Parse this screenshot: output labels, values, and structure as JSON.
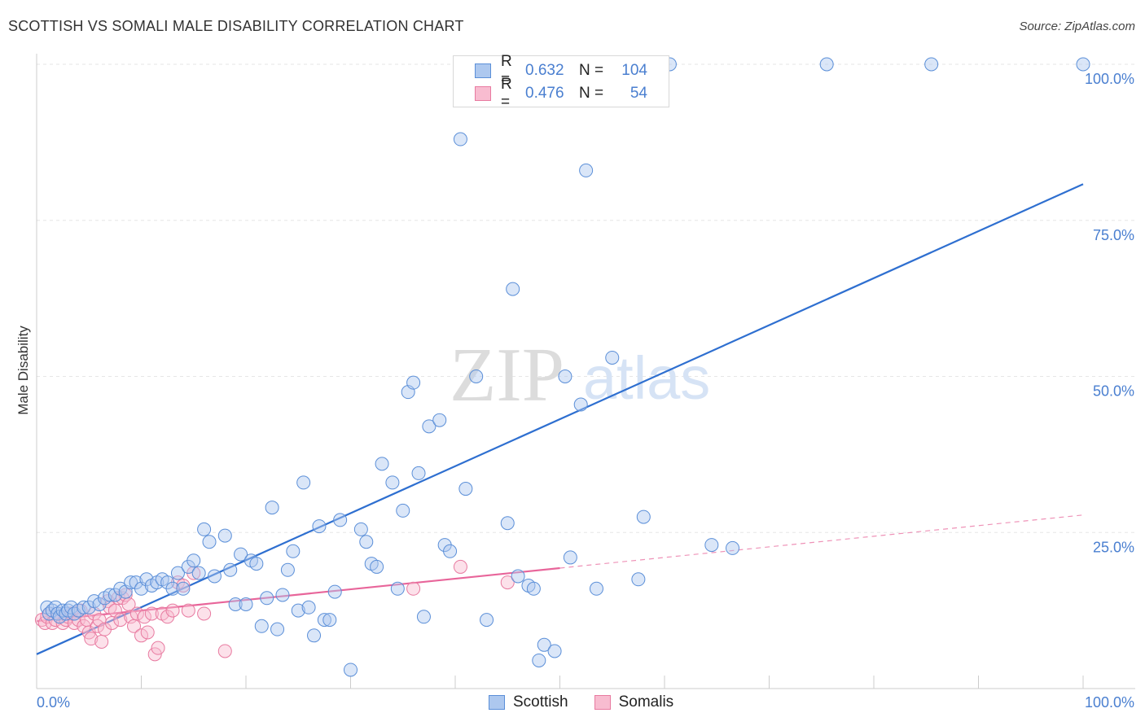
{
  "title": "SCOTTISH VS SOMALI MALE DISABILITY CORRELATION CHART",
  "source": "Source: ZipAtlas.com",
  "watermark": {
    "zip": "ZIP",
    "atlas": "atlas"
  },
  "legend": {
    "r_label": "R =",
    "n_label": "N =",
    "series": [
      {
        "name": "Scottish",
        "r": "0.632",
        "n": "104",
        "fill": "#adc8ef",
        "stroke": "#5b8fd8"
      },
      {
        "name": "Somalis",
        "r": "0.476",
        "n": "54",
        "fill": "#f8bcd0",
        "stroke": "#e87aa0"
      }
    ]
  },
  "chart_data": {
    "type": "scatter",
    "ylabel": "Male Disability",
    "xlabel": "",
    "xlim": [
      0,
      100
    ],
    "ylim": [
      0,
      100
    ],
    "x_tick_labels": [
      {
        "value": 0,
        "label": "0.0%"
      },
      {
        "value": 100,
        "label": "100.0%"
      }
    ],
    "y_tick_labels": [
      {
        "value": 25,
        "label": "25.0%"
      },
      {
        "value": 50,
        "label": "50.0%"
      },
      {
        "value": 75,
        "label": "75.0%"
      },
      {
        "value": 100,
        "label": "100.0%"
      }
    ],
    "grid": true,
    "colors": {
      "scottish": "#5b8fd8",
      "scottish_line": "#2e6fd0",
      "somalis": "#e87aa0",
      "somalis_line": "#e8659a"
    },
    "series": [
      {
        "name": "Scottish",
        "trend": {
          "x": [
            0,
            100
          ],
          "y": [
            5.5,
            80.8
          ]
        },
        "points": [
          [
            1.0,
            13
          ],
          [
            1.2,
            12
          ],
          [
            1.5,
            12.5
          ],
          [
            1.8,
            13
          ],
          [
            2.0,
            12
          ],
          [
            2.2,
            11.5
          ],
          [
            2.5,
            12.5
          ],
          [
            2.8,
            12
          ],
          [
            3.0,
            12.5
          ],
          [
            3.3,
            13
          ],
          [
            3.6,
            12
          ],
          [
            4.0,
            12.5
          ],
          [
            4.5,
            13
          ],
          [
            5.0,
            13
          ],
          [
            5.5,
            14
          ],
          [
            6.0,
            13.5
          ],
          [
            6.5,
            14.5
          ],
          [
            7.0,
            15
          ],
          [
            7.5,
            15
          ],
          [
            8.0,
            16
          ],
          [
            8.5,
            15.5
          ],
          [
            9.0,
            17
          ],
          [
            9.5,
            17
          ],
          [
            10.0,
            16
          ],
          [
            10.5,
            17.5
          ],
          [
            11.0,
            16.5
          ],
          [
            11.5,
            17
          ],
          [
            12.0,
            17.5
          ],
          [
            12.5,
            17
          ],
          [
            13.0,
            16
          ],
          [
            13.5,
            18.5
          ],
          [
            14.0,
            16
          ],
          [
            14.5,
            19.5
          ],
          [
            15.0,
            20.5
          ],
          [
            15.5,
            18.5
          ],
          [
            16.0,
            25.5
          ],
          [
            16.5,
            23.5
          ],
          [
            17.0,
            18
          ],
          [
            18.0,
            24.5
          ],
          [
            18.5,
            19
          ],
          [
            19.0,
            13.5
          ],
          [
            19.5,
            21.5
          ],
          [
            20.0,
            13.5
          ],
          [
            20.5,
            20.5
          ],
          [
            21.0,
            20
          ],
          [
            21.5,
            10
          ],
          [
            22.0,
            14.5
          ],
          [
            22.5,
            29
          ],
          [
            23.0,
            9.5
          ],
          [
            23.5,
            15
          ],
          [
            24.0,
            19
          ],
          [
            24.5,
            22
          ],
          [
            25.0,
            12.5
          ],
          [
            25.5,
            33
          ],
          [
            26.0,
            13
          ],
          [
            26.5,
            8.5
          ],
          [
            27.0,
            26
          ],
          [
            27.5,
            11
          ],
          [
            28.0,
            11
          ],
          [
            28.5,
            15.5
          ],
          [
            29.0,
            27
          ],
          [
            30.0,
            3
          ],
          [
            31.0,
            25.5
          ],
          [
            31.5,
            23.5
          ],
          [
            32.0,
            20
          ],
          [
            32.5,
            19.5
          ],
          [
            33.0,
            36
          ],
          [
            34.0,
            33
          ],
          [
            34.5,
            16
          ],
          [
            35.0,
            28.5
          ],
          [
            35.5,
            47.5
          ],
          [
            36.0,
            49
          ],
          [
            36.5,
            34.5
          ],
          [
            37.0,
            11.5
          ],
          [
            37.5,
            42
          ],
          [
            38.5,
            43
          ],
          [
            39.0,
            23
          ],
          [
            39.5,
            22
          ],
          [
            40.5,
            88
          ],
          [
            41.0,
            32
          ],
          [
            42.0,
            50
          ],
          [
            43.0,
            11
          ],
          [
            45.0,
            26.5
          ],
          [
            45.5,
            64
          ],
          [
            46.0,
            18
          ],
          [
            47.0,
            16.5
          ],
          [
            47.5,
            16
          ],
          [
            48.0,
            4.5
          ],
          [
            48.5,
            7
          ],
          [
            49.5,
            6
          ],
          [
            50.5,
            50
          ],
          [
            51.0,
            21
          ],
          [
            52.0,
            45.5
          ],
          [
            52.5,
            83
          ],
          [
            53.5,
            16
          ],
          [
            55.0,
            53
          ],
          [
            57.5,
            17.5
          ],
          [
            58.0,
            27.5
          ],
          [
            60.5,
            100
          ],
          [
            64.5,
            23
          ],
          [
            66.5,
            22.5
          ],
          [
            75.5,
            100
          ],
          [
            85.5,
            100
          ],
          [
            100.0,
            100
          ]
        ]
      },
      {
        "name": "Somalis",
        "trend": {
          "x": [
            0,
            50
          ],
          "y": [
            10.8,
            19.3
          ]
        },
        "trend_extension": {
          "x": [
            50,
            100
          ],
          "y": [
            19.3,
            27.8
          ]
        },
        "points": [
          [
            0.5,
            11
          ],
          [
            0.8,
            10.5
          ],
          [
            1.0,
            11.5
          ],
          [
            1.2,
            12
          ],
          [
            1.5,
            10.5
          ],
          [
            1.8,
            11
          ],
          [
            2.0,
            12
          ],
          [
            2.2,
            11.5
          ],
          [
            2.5,
            10.5
          ],
          [
            2.8,
            11
          ],
          [
            3.0,
            11.5
          ],
          [
            3.3,
            12
          ],
          [
            3.6,
            10.5
          ],
          [
            4.0,
            11
          ],
          [
            4.2,
            12.5
          ],
          [
            4.5,
            10
          ],
          [
            4.8,
            11
          ],
          [
            5.0,
            9
          ],
          [
            5.2,
            8
          ],
          [
            5.5,
            12
          ],
          [
            5.8,
            10
          ],
          [
            6.0,
            11
          ],
          [
            6.2,
            7.5
          ],
          [
            6.5,
            9.5
          ],
          [
            6.8,
            14
          ],
          [
            7.0,
            13
          ],
          [
            7.2,
            10.5
          ],
          [
            7.5,
            12.5
          ],
          [
            7.8,
            14.5
          ],
          [
            8.0,
            11
          ],
          [
            8.2,
            14.5
          ],
          [
            8.5,
            15
          ],
          [
            8.8,
            13.5
          ],
          [
            9.0,
            11.5
          ],
          [
            9.3,
            10
          ],
          [
            9.6,
            12
          ],
          [
            10.0,
            8.5
          ],
          [
            10.3,
            11.5
          ],
          [
            10.6,
            9
          ],
          [
            11.0,
            12
          ],
          [
            11.3,
            5.5
          ],
          [
            11.6,
            6.5
          ],
          [
            12.0,
            12
          ],
          [
            12.5,
            11.5
          ],
          [
            13.0,
            12.5
          ],
          [
            13.5,
            17
          ],
          [
            14.0,
            16.5
          ],
          [
            14.5,
            12.5
          ],
          [
            15.0,
            18.5
          ],
          [
            16.0,
            12
          ],
          [
            18.0,
            6
          ],
          [
            36.0,
            16
          ],
          [
            40.5,
            19.5
          ],
          [
            45.0,
            17
          ]
        ]
      }
    ]
  }
}
